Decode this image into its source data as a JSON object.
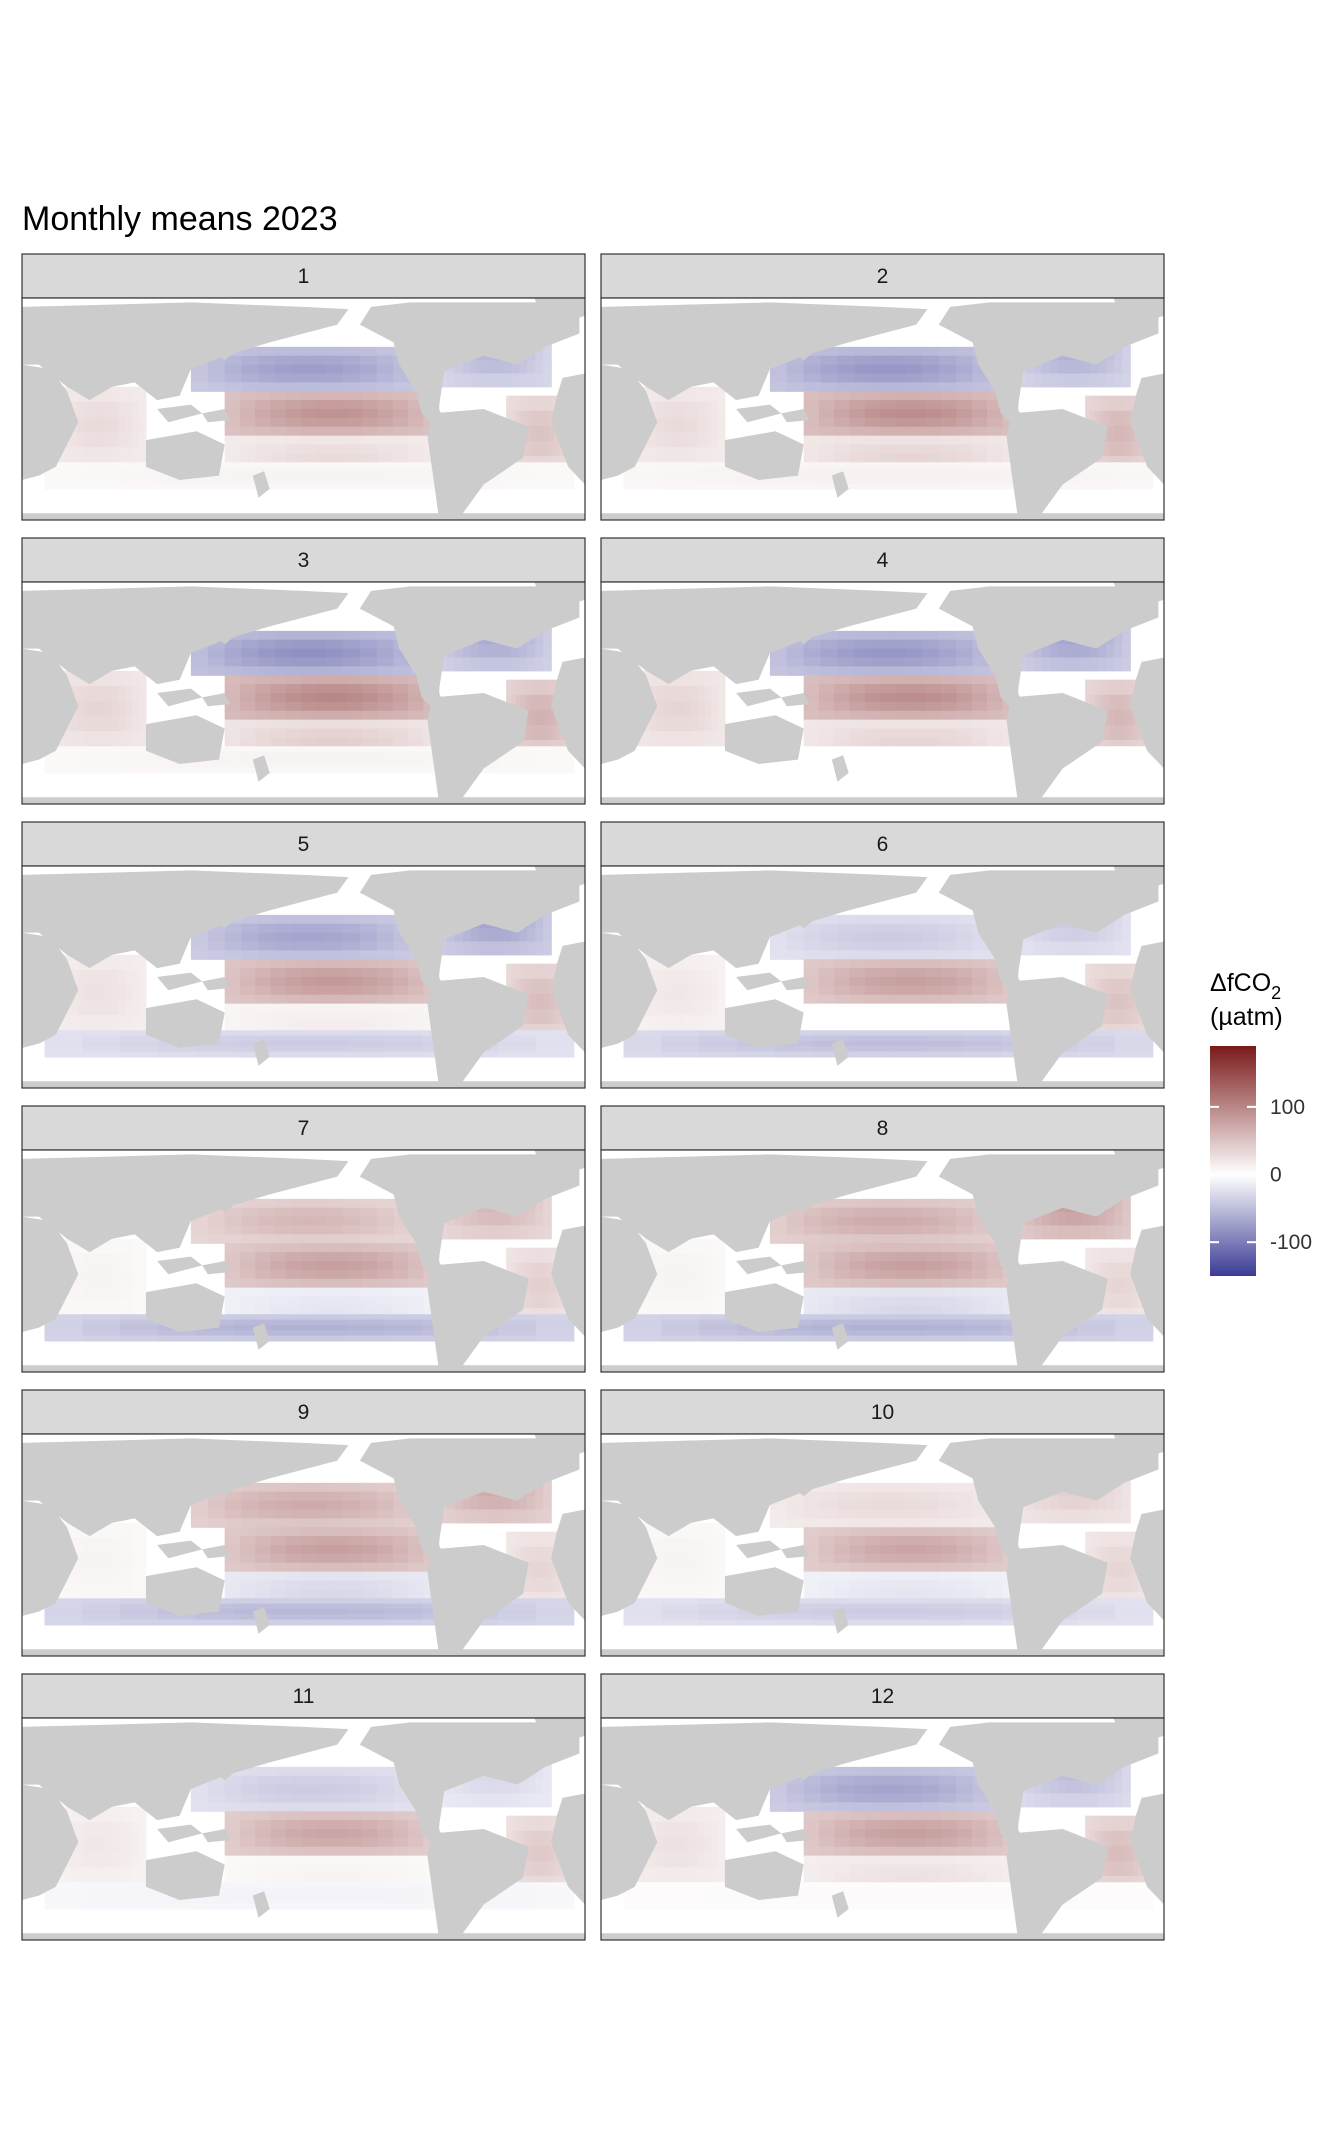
{
  "chart_data": {
    "type": "heatmap",
    "title": "Monthly means 2023",
    "facets": [
      "1",
      "2",
      "3",
      "4",
      "5",
      "6",
      "7",
      "8",
      "9",
      "10",
      "11",
      "12"
    ],
    "legend": {
      "title_main": "ΔfCO",
      "title_sub": "2",
      "title_unit": "(µatm)",
      "ticks": [
        100,
        0,
        -100
      ],
      "tick_labels": [
        "100",
        "0",
        "-100"
      ],
      "range": [
        -150,
        190
      ],
      "placement": "right",
      "colors": {
        "low": "#3b3b95",
        "mid": "#ffffff",
        "high": "#7a1a1a"
      }
    },
    "land_color": "#cccccc",
    "strip_color": "#d9d9d9",
    "monthly_pattern": [
      {
        "month": 1,
        "npac": -75,
        "eq": 90,
        "spac": 30,
        "natl": -55,
        "eqatl": 50,
        "ind": 30,
        "so": 10
      },
      {
        "month": 2,
        "npac": -80,
        "eq": 95,
        "spac": 35,
        "natl": -60,
        "eqatl": 60,
        "ind": 30,
        "so": 12
      },
      {
        "month": 3,
        "npac": -85,
        "eq": 100,
        "spac": 40,
        "natl": -65,
        "eqatl": 65,
        "ind": 35,
        "so": 10
      },
      {
        "month": 4,
        "npac": -80,
        "eq": 95,
        "spac": 35,
        "natl": -70,
        "eqatl": 60,
        "ind": 35,
        "so": 0
      },
      {
        "month": 5,
        "npac": -70,
        "eq": 85,
        "spac": 15,
        "natl": -70,
        "eqatl": 55,
        "ind": 25,
        "so": -40
      },
      {
        "month": 6,
        "npac": -40,
        "eq": 80,
        "spac": 0,
        "natl": -40,
        "eqatl": 50,
        "ind": 20,
        "so": -50
      },
      {
        "month": 7,
        "npac": 60,
        "eq": 80,
        "spac": -20,
        "natl": 60,
        "eqatl": 40,
        "ind": 10,
        "so": -60
      },
      {
        "month": 8,
        "npac": 70,
        "eq": 80,
        "spac": -30,
        "natl": 80,
        "eqatl": 35,
        "ind": 10,
        "so": -60
      },
      {
        "month": 9,
        "npac": 70,
        "eq": 80,
        "spac": -30,
        "natl": 70,
        "eqatl": 35,
        "ind": 10,
        "so": -55
      },
      {
        "month": 10,
        "npac": 30,
        "eq": 75,
        "spac": -20,
        "natl": 40,
        "eqatl": 35,
        "ind": 10,
        "so": -40
      },
      {
        "month": 11,
        "npac": -40,
        "eq": 75,
        "spac": 10,
        "natl": -30,
        "eqatl": 45,
        "ind": 20,
        "so": -10
      },
      {
        "month": 12,
        "npac": -70,
        "eq": 80,
        "spac": 25,
        "natl": -50,
        "eqatl": 55,
        "ind": 25,
        "so": 5
      }
    ]
  }
}
